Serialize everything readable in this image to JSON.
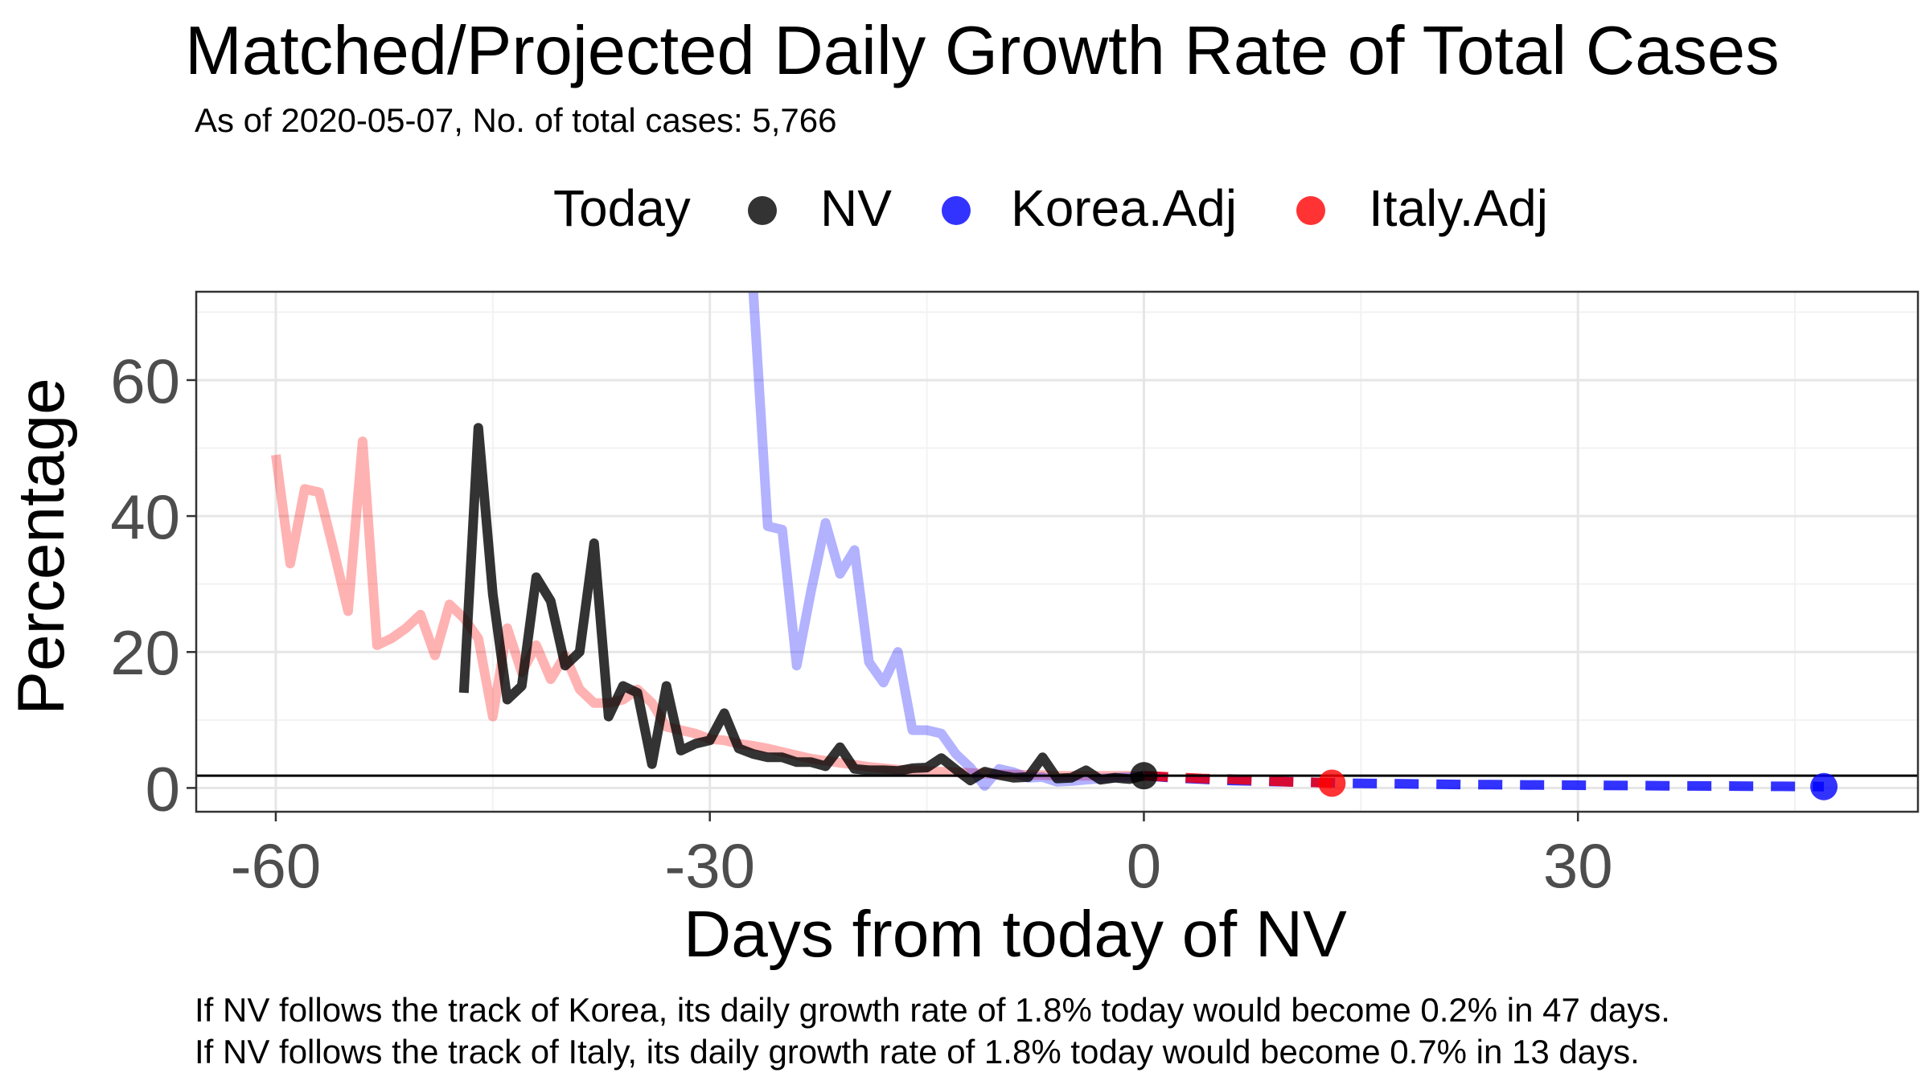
{
  "chart_data": {
    "type": "line",
    "title": "Matched/Projected Daily Growth Rate of Total Cases",
    "subtitle": "As of 2020-05-07, No. of total cases: 5,766",
    "xlabel": "Days from today of NV",
    "ylabel": "Percentage",
    "xlim": [
      -65.5,
      53.5
    ],
    "ylim": [
      -3.5,
      73
    ],
    "x_ticks": [
      -60,
      -30,
      0,
      30
    ],
    "y_ticks": [
      0,
      20,
      40,
      60
    ],
    "grid": true,
    "reference_hline": 1.8,
    "legend": {
      "title": "Today",
      "position": "top",
      "entries": [
        "NV",
        "Korea.Adj",
        "Italy.Adj"
      ]
    },
    "colors": {
      "NV": "#000000",
      "Korea.Adj": "#0000ff",
      "Italy.Adj": "#ff0000",
      "grid_major": "#e6e6e6",
      "grid_minor": "#f2f2f2",
      "axis_text": "#4d4d4d"
    },
    "series": [
      {
        "name": "Italy.Adj",
        "style": "faded",
        "x": [
          -60,
          -59,
          -58,
          -57,
          -56,
          -55,
          -54,
          -53,
          -52,
          -51,
          -50,
          -49,
          -48,
          -47,
          -46,
          -45,
          -44,
          -43,
          -42,
          -41,
          -40,
          -39,
          -38,
          -37,
          -36,
          -35,
          -34,
          -33,
          -32,
          -31,
          -30,
          -29,
          -28,
          -27,
          -26,
          -25,
          -24,
          -23,
          -22,
          -21,
          -20,
          -19,
          -18,
          -17,
          -16,
          -15,
          -14,
          -13,
          -12,
          -11,
          -10,
          -9,
          -8,
          -7,
          -6,
          -5,
          -4,
          -3,
          -2,
          -1,
          0
        ],
        "values": [
          49,
          33,
          44,
          43.5,
          35,
          26,
          51,
          21,
          22,
          23.5,
          25.5,
          19.5,
          27,
          25,
          22,
          10.5,
          23.5,
          17,
          21,
          16,
          19.5,
          14.5,
          12.5,
          12.5,
          13,
          14.5,
          12.5,
          9,
          8.5,
          8,
          7.2,
          7,
          6.5,
          6.2,
          5.8,
          5.3,
          4.8,
          4.3,
          4,
          3.7,
          3.4,
          3.1,
          2.9,
          2.7,
          2.6,
          2.5,
          2.4,
          2.3,
          2.2,
          2.1,
          2.0,
          2.0,
          1.9,
          1.9,
          1.8,
          1.8,
          1.8,
          1.8,
          1.8,
          1.8,
          1.8
        ]
      },
      {
        "name": "Korea.Adj",
        "style": "faded",
        "x": [
          -27,
          -26,
          -25,
          -24,
          -23,
          -22,
          -21,
          -20,
          -19,
          -18,
          -17,
          -16,
          -15,
          -14,
          -13,
          -12,
          -11,
          -10,
          -9,
          -8,
          -7,
          -6,
          -5,
          -4,
          -3,
          -2,
          -1,
          0
        ],
        "values": [
          73,
          38.5,
          38,
          18,
          29,
          39,
          31.5,
          35,
          18.5,
          15.5,
          20,
          8.5,
          8.5,
          8,
          5,
          3,
          0.3,
          2.8,
          2.3,
          1.5,
          1.6,
          0.9,
          1.0,
          1.2,
          1.4,
          1.5,
          1.6,
          1.8
        ]
      },
      {
        "name": "NV",
        "style": "solid",
        "x": [
          -47,
          -46,
          -45,
          -44,
          -43,
          -42,
          -41,
          -40,
          -39,
          -38,
          -37,
          -36,
          -35,
          -34,
          -33,
          -32,
          -31,
          -30,
          -29,
          -28,
          -27,
          -26,
          -25,
          -24,
          -23,
          -22,
          -21,
          -20,
          -19,
          -18,
          -17,
          -16,
          -15,
          -14,
          -13,
          -12,
          -11,
          -10,
          -9,
          -8,
          -7,
          -6,
          -5,
          -4,
          -3,
          -2,
          -1,
          0
        ],
        "values": [
          14,
          53,
          28.5,
          13,
          15,
          31,
          27.5,
          18,
          20,
          36,
          10.5,
          15,
          14,
          3.5,
          15,
          5.5,
          6.5,
          7,
          11,
          5.8,
          5,
          4.5,
          4.5,
          3.8,
          3.8,
          3.2,
          6,
          2.8,
          2.6,
          2.6,
          2.5,
          2.9,
          3.0,
          4.4,
          2.7,
          1.1,
          2.4,
          1.9,
          1.5,
          1.6,
          4.5,
          1.4,
          1.5,
          2.6,
          1.2,
          1.5,
          1.3,
          1.8
        ]
      },
      {
        "name": "Korea.Adj",
        "style": "projected",
        "x": [
          0,
          2,
          4,
          6,
          8,
          10,
          12,
          14,
          16,
          18,
          20,
          22,
          24,
          26,
          28,
          30,
          32,
          34,
          36,
          38,
          40,
          42,
          44,
          46,
          47
        ],
        "values": [
          1.8,
          1.5,
          1.3,
          1.1,
          1.0,
          0.9,
          0.8,
          0.7,
          0.65,
          0.6,
          0.55,
          0.5,
          0.48,
          0.45,
          0.42,
          0.4,
          0.37,
          0.35,
          0.32,
          0.3,
          0.28,
          0.26,
          0.24,
          0.22,
          0.2
        ]
      },
      {
        "name": "Italy.Adj",
        "style": "projected",
        "x": [
          0,
          1,
          2,
          3,
          4,
          5,
          6,
          7,
          8,
          9,
          10,
          11,
          12,
          13
        ],
        "values": [
          1.8,
          1.7,
          1.6,
          1.5,
          1.4,
          1.35,
          1.3,
          1.2,
          1.1,
          1.0,
          0.9,
          0.85,
          0.8,
          0.7
        ]
      }
    ],
    "today_points": [
      {
        "name": "NV",
        "x": 0,
        "y": 1.8
      },
      {
        "name": "Korea.Adj",
        "x": 47,
        "y": 0.2
      },
      {
        "name": "Italy.Adj",
        "x": 13,
        "y": 0.7
      }
    ]
  },
  "legend": {
    "title": "Today",
    "items": [
      {
        "label": "NV",
        "color": "#333333"
      },
      {
        "label": "Korea.Adj",
        "color": "#3333ff"
      },
      {
        "label": "Italy.Adj",
        "color": "#ff3333"
      }
    ]
  },
  "captions": [
    "If NV follows the track of Korea, its daily growth rate of 1.8% today would become 0.2% in 47 days.",
    "If NV follows the track of Italy, its daily growth rate of 1.8% today would become 0.7% in 13 days."
  ]
}
